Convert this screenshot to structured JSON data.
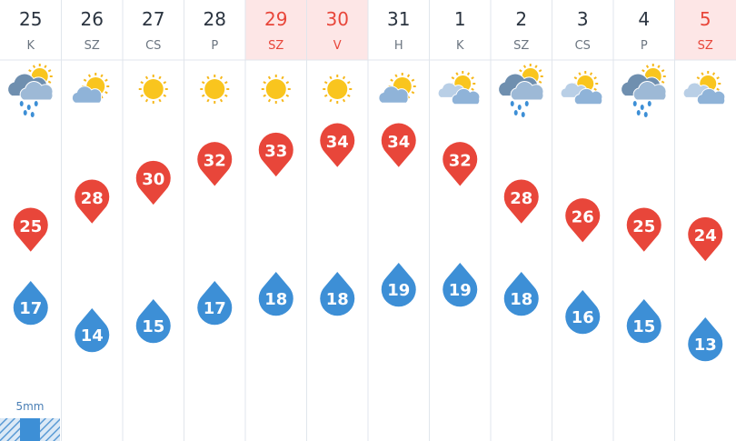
{
  "days": [
    {
      "date": "25",
      "weekday": "K",
      "weekend": false,
      "sky": "rain",
      "max": 25,
      "min": 17
    },
    {
      "date": "26",
      "weekday": "SZ",
      "weekend": false,
      "sky": "partly",
      "max": 28,
      "min": 14
    },
    {
      "date": "27",
      "weekday": "CS",
      "weekend": false,
      "sky": "sun",
      "max": 30,
      "min": 15
    },
    {
      "date": "28",
      "weekday": "P",
      "weekend": false,
      "sky": "sun",
      "max": 32,
      "min": 17
    },
    {
      "date": "29",
      "weekday": "SZ",
      "weekend": true,
      "sky": "sun",
      "max": 33,
      "min": 18
    },
    {
      "date": "30",
      "weekday": "V",
      "weekend": true,
      "sky": "sun",
      "max": 34,
      "min": 18
    },
    {
      "date": "31",
      "weekday": "H",
      "weekend": false,
      "sky": "partly",
      "max": 34,
      "min": 19
    },
    {
      "date": "1",
      "weekday": "K",
      "weekend": false,
      "sky": "cloudy",
      "max": 32,
      "min": 19
    },
    {
      "date": "2",
      "weekday": "SZ",
      "weekend": false,
      "sky": "rain",
      "max": 28,
      "min": 18
    },
    {
      "date": "3",
      "weekday": "CS",
      "weekend": false,
      "sky": "cloudy",
      "max": 26,
      "min": 16
    },
    {
      "date": "4",
      "weekday": "P",
      "weekend": false,
      "sky": "rain",
      "max": 25,
      "min": 15
    },
    {
      "date": "5",
      "weekday": "SZ",
      "weekend": true,
      "sky": "cloudy",
      "max": 24,
      "min": 13
    }
  ],
  "precipitation": {
    "label": "5mm"
  }
}
